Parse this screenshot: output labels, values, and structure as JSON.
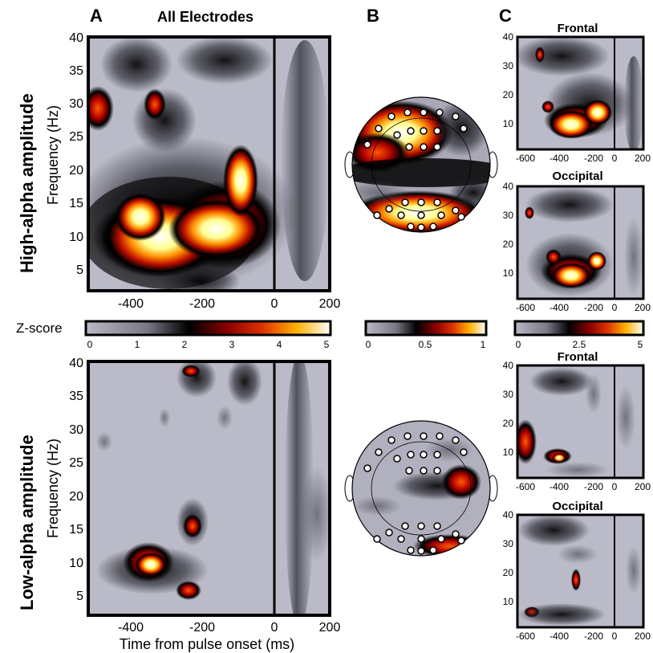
{
  "panels": {
    "a": "A",
    "b": "B",
    "c": "C"
  },
  "titles": {
    "all_electrodes": "All Electrodes",
    "frontal_top": "Frontal",
    "occipital_top": "Occipital",
    "frontal_bottom": "Frontal",
    "occipital_bottom": "Occipital"
  },
  "row_labels": {
    "high": "High-alpha amplitude",
    "low": "Low-alpha amplitude"
  },
  "axes": {
    "ylabel": "Frequency (Hz)",
    "xlabel": "Time from pulse onset (ms)",
    "y_ticks_large": [
      "40",
      "35",
      "30",
      "25",
      "20",
      "15",
      "10",
      "5"
    ],
    "x_ticks_large": [
      "-400",
      "-200",
      "0",
      "200"
    ],
    "y_ticks_small": [
      "40",
      "30",
      "20",
      "10"
    ],
    "x_ticks_small": [
      "-600",
      "-400",
      "-200",
      "0",
      "200"
    ]
  },
  "colorbars": {
    "label": "Z-score",
    "a_ticks": [
      "0",
      "1",
      "2",
      "3",
      "4",
      "5"
    ],
    "b_ticks": [
      "0",
      "0.5",
      "1"
    ],
    "c_ticks": [
      "0",
      "2.5",
      "5"
    ]
  },
  "colors": {
    "background_map": "#babac8",
    "onset_line": "#000000"
  },
  "chart_data": [
    {
      "type": "heatmap",
      "panel": "A-top",
      "title": "All Electrodes",
      "xlabel": "",
      "ylabel": "Frequency (Hz)",
      "xlim": [
        -540,
        200
      ],
      "ylim": [
        2,
        40
      ],
      "blobs": [
        {
          "t": -350,
          "f": 10.5,
          "z": 5
        },
        {
          "t": -160,
          "f": 13,
          "z": 5
        },
        {
          "t": -90,
          "f": 20,
          "z": 4.5
        },
        {
          "t": -510,
          "f": 29,
          "z": 3
        },
        {
          "t": -340,
          "f": 30,
          "z": 3
        }
      ]
    },
    {
      "type": "heatmap",
      "panel": "A-bottom",
      "title": "",
      "xlabel": "Time from pulse onset (ms)",
      "ylabel": "Frequency (Hz)",
      "xlim": [
        -540,
        200
      ],
      "ylim": [
        2,
        40
      ],
      "blobs": [
        {
          "t": -360,
          "f": 9,
          "z": 5
        },
        {
          "t": -240,
          "f": 15,
          "z": 3
        },
        {
          "t": -250,
          "f": 5,
          "z": 3
        },
        {
          "t": -230,
          "f": 39,
          "z": 2
        }
      ]
    }
  ]
}
